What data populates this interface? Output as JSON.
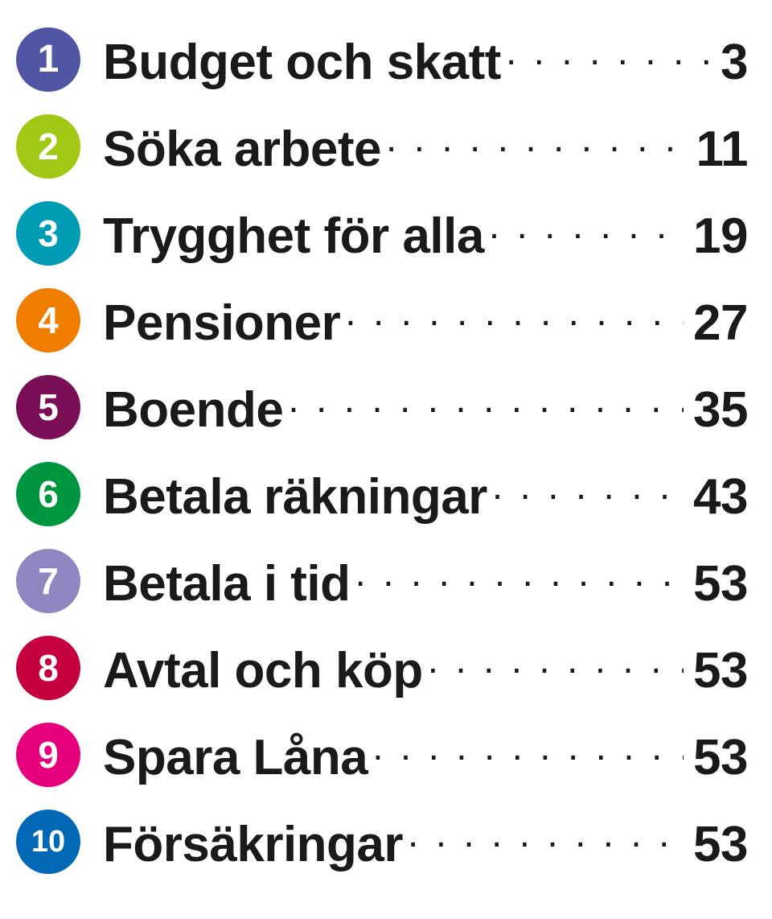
{
  "toc": {
    "text_color": "#1a1a1a",
    "badge_text_color": "#ffffff",
    "title_fontsize": 62,
    "title_fontweight": 600,
    "badge_diameter": 80,
    "items": [
      {
        "num": "1",
        "title": "Budget och skatt",
        "page": "3",
        "badge_color": "#5056a3",
        "badge_fontsize": 48
      },
      {
        "num": "2",
        "title": "Söka arbete",
        "page": "11",
        "badge_color": "#a0c814",
        "badge_fontsize": 46
      },
      {
        "num": "3",
        "title": "Trygghet för alla",
        "page": "19",
        "badge_color": "#009bb4",
        "badge_fontsize": 46
      },
      {
        "num": "4",
        "title": "Pensioner",
        "page": "27",
        "badge_color": "#ef7d00",
        "badge_fontsize": 46
      },
      {
        "num": "5",
        "title": "Boende",
        "page": "35",
        "badge_color": "#7a0e57",
        "badge_fontsize": 46
      },
      {
        "num": "6",
        "title": "Betala räkningar",
        "page": "43",
        "badge_color": "#009640",
        "badge_fontsize": 46
      },
      {
        "num": "7",
        "title": "Betala i tid",
        "page": "53",
        "badge_color": "#9187c0",
        "badge_fontsize": 46
      },
      {
        "num": "8",
        "title": "Avtal och köp",
        "page": "53",
        "badge_color": "#c5003e",
        "badge_fontsize": 46
      },
      {
        "num": "9",
        "title": "Spara Låna",
        "page": "53",
        "badge_color": "#e6007e",
        "badge_fontsize": 46
      },
      {
        "num": "10",
        "title": "Försäkringar",
        "page": "53",
        "badge_color": "#0068b4",
        "badge_fontsize": 38
      }
    ]
  }
}
